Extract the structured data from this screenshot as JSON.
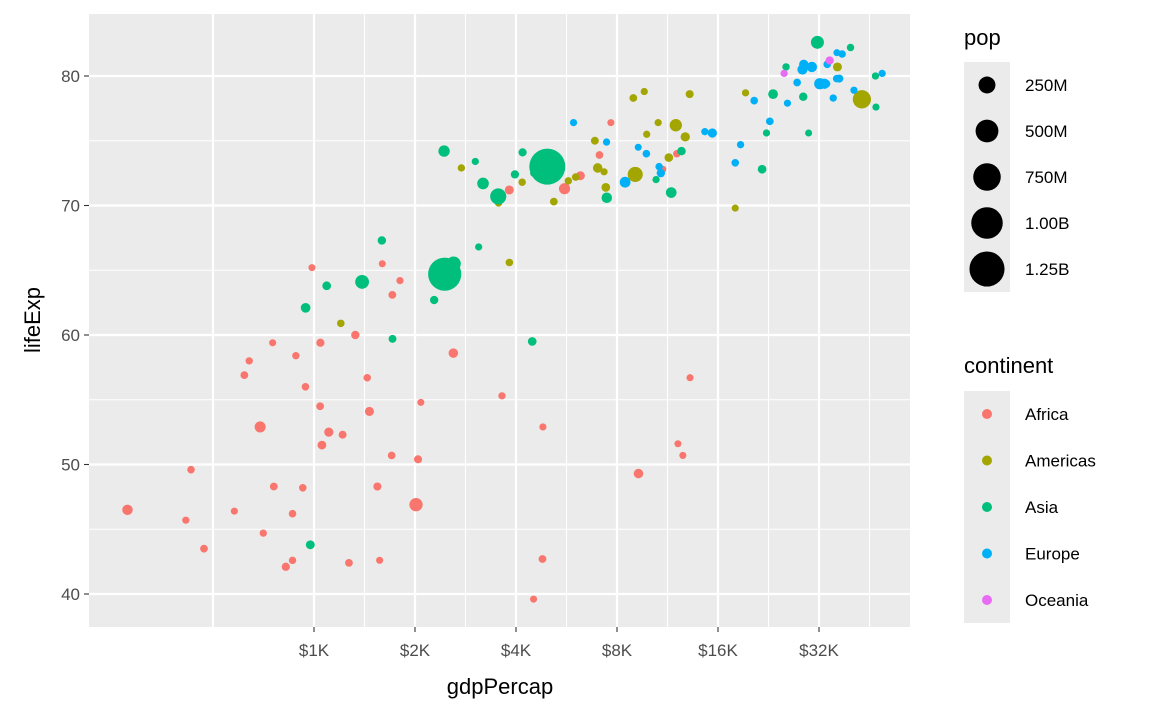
{
  "chart_data": {
    "type": "scatter",
    "title": "",
    "xlabel": "gdpPercap",
    "ylabel": "lifeExp",
    "x_scale": "log2",
    "xlim": [
      213,
      59700
    ],
    "ylim": [
      37.2,
      84.5
    ],
    "x_ticks": [
      1000,
      2000,
      4000,
      8000,
      16000,
      32000
    ],
    "x_tick_labels": [
      "$1K",
      "$2K",
      "$4K",
      "$8K",
      "$16K",
      "$32K"
    ],
    "y_ticks": [
      40,
      50,
      60,
      70,
      80
    ],
    "y_tick_labels": [
      "40",
      "50",
      "60",
      "70",
      "80"
    ],
    "grid": true,
    "legend_position": "right",
    "size_legend": {
      "title": "pop",
      "breaks": [
        250,
        500,
        750,
        1000,
        1250
      ],
      "labels": [
        "250M",
        "500M",
        "750M",
        "1.00B",
        "1.25B"
      ]
    },
    "color_legend": {
      "title": "continent",
      "entries": [
        {
          "label": "Africa",
          "color": "#F8766D"
        },
        {
          "label": "Americas",
          "color": "#A3A500"
        },
        {
          "label": "Asia",
          "color": "#00BF7D"
        },
        {
          "label": "Europe",
          "color": "#00B0F6"
        },
        {
          "label": "Oceania",
          "color": "#E76BF3"
        }
      ]
    },
    "point_fields": [
      "continent",
      "gdpPercap",
      "lifeExp",
      "pop_millions"
    ],
    "points": [
      [
        "Africa",
        6223,
        72.3,
        33.3
      ],
      [
        "Africa",
        4797,
        42.7,
        12.4
      ],
      [
        "Africa",
        1441,
        56.7,
        8.1
      ],
      [
        "Africa",
        12570,
        50.7,
        1.6
      ],
      [
        "Africa",
        1217,
        52.3,
        14.3
      ],
      [
        "Africa",
        430,
        49.6,
        8.4
      ],
      [
        "Africa",
        2042,
        50.4,
        17.7
      ],
      [
        "Africa",
        706,
        44.7,
        4.4
      ],
      [
        "Africa",
        1704,
        50.7,
        10.2
      ],
      [
        "Africa",
        986,
        65.2,
        0.7
      ],
      [
        "Africa",
        278,
        46.5,
        64.6
      ],
      [
        "Africa",
        3633,
        55.3,
        3.8
      ],
      [
        "Africa",
        1545,
        48.3,
        18.0
      ],
      [
        "Africa",
        2082,
        54.8,
        0.5
      ],
      [
        "Africa",
        5581,
        71.3,
        80.3
      ],
      [
        "Africa",
        12154,
        51.6,
        0.55
      ],
      [
        "Africa",
        641,
        58.0,
        4.9
      ],
      [
        "Africa",
        691,
        52.9,
        76.5
      ],
      [
        "Africa",
        13206,
        56.7,
        1.45
      ],
      [
        "Africa",
        753,
        59.4,
        1.7
      ],
      [
        "Africa",
        1328,
        60.0,
        22.9
      ],
      [
        "Africa",
        943,
        56.0,
        9.9
      ],
      [
        "Africa",
        579,
        46.4,
        1.5
      ],
      [
        "Africa",
        1463,
        54.1,
        35.6
      ],
      [
        "Africa",
        1569,
        42.6,
        2.0
      ],
      [
        "Africa",
        415,
        45.7,
        3.2
      ],
      [
        "Africa",
        12057,
        74.0,
        6.0
      ],
      [
        "Africa",
        1045,
        59.4,
        19.2
      ],
      [
        "Africa",
        759,
        48.3,
        13.3
      ],
      [
        "Africa",
        1043,
        54.5,
        12.0
      ],
      [
        "Africa",
        1804,
        64.2,
        3.3
      ],
      [
        "Africa",
        10957,
        72.8,
        1.25
      ],
      [
        "Africa",
        3820,
        71.2,
        33.8
      ],
      [
        "Africa",
        824,
        42.1,
        20.0
      ],
      [
        "Africa",
        4811,
        52.9,
        2.1
      ],
      [
        "Africa",
        620,
        56.9,
        12.9
      ],
      [
        "Africa",
        2014,
        46.9,
        135
      ],
      [
        "Africa",
        7670,
        76.4,
        0.8
      ],
      [
        "Africa",
        863,
        46.2,
        8.9
      ],
      [
        "Africa",
        1598,
        65.5,
        0.2
      ],
      [
        "Africa",
        1712,
        63.1,
        12.3
      ],
      [
        "Africa",
        863,
        42.6,
        6.1
      ],
      [
        "Africa",
        926,
        48.2,
        9.1
      ],
      [
        "Africa",
        9270,
        49.3,
        44.0
      ],
      [
        "Africa",
        2602,
        58.6,
        42.3
      ],
      [
        "Africa",
        4513,
        39.6,
        1.1
      ],
      [
        "Africa",
        1107,
        52.5,
        38.1
      ],
      [
        "Africa",
        883,
        58.4,
        5.7
      ],
      [
        "Africa",
        7093,
        73.9,
        10.3
      ],
      [
        "Africa",
        1056,
        51.5,
        29.2
      ],
      [
        "Africa",
        1271,
        42.4,
        11.7
      ],
      [
        "Africa",
        470,
        43.5,
        12.3
      ],
      [
        "Americas",
        12779,
        75.3,
        40.3
      ],
      [
        "Americas",
        3822,
        65.6,
        9.1
      ],
      [
        "Americas",
        9066,
        72.4,
        190
      ],
      [
        "Americas",
        36319,
        80.7,
        33.4
      ],
      [
        "Americas",
        13172,
        78.6,
        16.3
      ],
      [
        "Americas",
        7007,
        72.9,
        44.2
      ],
      [
        "Americas",
        9645,
        78.8,
        4.1
      ],
      [
        "Americas",
        8948,
        78.3,
        11.4
      ],
      [
        "Americas",
        6025,
        72.2,
        9.3
      ],
      [
        "Americas",
        6873,
        75.0,
        13.8
      ],
      [
        "Americas",
        5728,
        71.9,
        6.9
      ],
      [
        "Americas",
        5186,
        70.3,
        12.6
      ],
      [
        "Americas",
        1202,
        60.9,
        8.5
      ],
      [
        "Americas",
        3548,
        70.2,
        7.5
      ],
      [
        "Americas",
        7321,
        72.6,
        2.8
      ],
      [
        "Americas",
        11978,
        76.2,
        108.7
      ],
      [
        "Americas",
        2749,
        72.9,
        5.7
      ],
      [
        "Americas",
        9809,
        75.5,
        3.2
      ],
      [
        "Americas",
        4173,
        71.8,
        6.7
      ],
      [
        "Americas",
        7409,
        71.4,
        28.7
      ],
      [
        "Americas",
        19329,
        78.7,
        3.9
      ],
      [
        "Americas",
        18009,
        69.8,
        1.06
      ],
      [
        "Americas",
        42952,
        78.2,
        301
      ],
      [
        "Americas",
        10611,
        76.4,
        3.4
      ],
      [
        "Americas",
        11416,
        73.7,
        26.1
      ],
      [
        "Asia",
        975,
        43.8,
        31.9
      ],
      [
        "Asia",
        29796,
        75.6,
        0.7
      ],
      [
        "Asia",
        1391,
        64.1,
        150
      ],
      [
        "Asia",
        1714,
        59.7,
        14.1
      ],
      [
        "Asia",
        4959,
        73.0,
        1319
      ],
      [
        "Asia",
        39725,
        82.2,
        6.98
      ],
      [
        "Asia",
        2452,
        64.7,
        1110
      ],
      [
        "Asia",
        3541,
        70.7,
        223.5
      ],
      [
        "Asia",
        11606,
        71.0,
        69.5
      ],
      [
        "Asia",
        4471,
        59.5,
        27.5
      ],
      [
        "Asia",
        25523,
        80.7,
        6.4
      ],
      [
        "Asia",
        31656,
        82.6,
        127.5
      ],
      [
        "Asia",
        4519,
        72.5,
        6.05
      ],
      [
        "Asia",
        1593,
        67.3,
        23.3
      ],
      [
        "Asia",
        23348,
        78.6,
        49.0
      ],
      [
        "Asia",
        47307,
        77.6,
        2.5
      ],
      [
        "Asia",
        10461,
        72.0,
        3.9
      ],
      [
        "Asia",
        12452,
        74.2,
        24.8
      ],
      [
        "Asia",
        3096,
        66.8,
        2.9
      ],
      [
        "Asia",
        944,
        62.1,
        47.8
      ],
      [
        "Asia",
        1091,
        63.8,
        28.9
      ],
      [
        "Asia",
        22316,
        75.6,
        3.2
      ],
      [
        "Asia",
        2606,
        65.5,
        169
      ],
      [
        "Asia",
        3190,
        71.7,
        91.1
      ],
      [
        "Asia",
        21655,
        72.8,
        27.6
      ],
      [
        "Asia",
        47143,
        80.0,
        4.55
      ],
      [
        "Asia",
        3970,
        72.4,
        20.4
      ],
      [
        "Asia",
        4185,
        74.1,
        19.3
      ],
      [
        "Asia",
        28718,
        78.4,
        23.2
      ],
      [
        "Asia",
        7458,
        70.6,
        65.1
      ],
      [
        "Asia",
        2442,
        74.2,
        85.3
      ],
      [
        "Asia",
        3025,
        73.4,
        4.0
      ],
      [
        "Asia",
        2281,
        62.7,
        22.2
      ],
      [
        "Europe",
        5937,
        76.4,
        3.6
      ],
      [
        "Europe",
        36126,
        79.8,
        8.2
      ],
      [
        "Europe",
        33693,
        79.4,
        10.4
      ],
      [
        "Europe",
        7446,
        74.9,
        4.6
      ],
      [
        "Europe",
        10681,
        73.0,
        7.3
      ],
      [
        "Europe",
        14619,
        75.7,
        4.5
      ],
      [
        "Europe",
        22833,
        76.5,
        10.2
      ],
      [
        "Europe",
        35278,
        78.3,
        5.5
      ],
      [
        "Europe",
        33207,
        79.3,
        5.2
      ],
      [
        "Europe",
        30470,
        80.7,
        61.1
      ],
      [
        "Europe",
        32170,
        79.4,
        82.4
      ],
      [
        "Europe",
        27538,
        79.5,
        10.7
      ],
      [
        "Europe",
        18009,
        73.3,
        9.96
      ],
      [
        "Europe",
        36181,
        81.8,
        0.3
      ],
      [
        "Europe",
        40676,
        78.9,
        4.1
      ],
      [
        "Europe",
        28570,
        80.5,
        58.1
      ],
      [
        "Europe",
        9254,
        74.5,
        0.7
      ],
      [
        "Europe",
        36798,
        79.8,
        16.6
      ],
      [
        "Europe",
        49357,
        80.2,
        4.6
      ],
      [
        "Europe",
        15390,
        75.6,
        38.5
      ],
      [
        "Europe",
        20510,
        78.1,
        10.6
      ],
      [
        "Europe",
        10808,
        72.5,
        22.3
      ],
      [
        "Europe",
        9787,
        74.0,
        10.2
      ],
      [
        "Europe",
        18678,
        74.7,
        5.4
      ],
      [
        "Europe",
        25768,
        77.9,
        2.0
      ],
      [
        "Europe",
        28821,
        80.9,
        40.4
      ],
      [
        "Europe",
        33860,
        80.9,
        9.0
      ],
      [
        "Europe",
        37506,
        81.7,
        7.55
      ],
      [
        "Europe",
        8458,
        71.8,
        71.2
      ],
      [
        "Europe",
        33203,
        79.4,
        60.8
      ],
      [
        "Oceania",
        34435,
        81.2,
        20.4
      ],
      [
        "Oceania",
        25185,
        80.2,
        4.1
      ]
    ]
  }
}
